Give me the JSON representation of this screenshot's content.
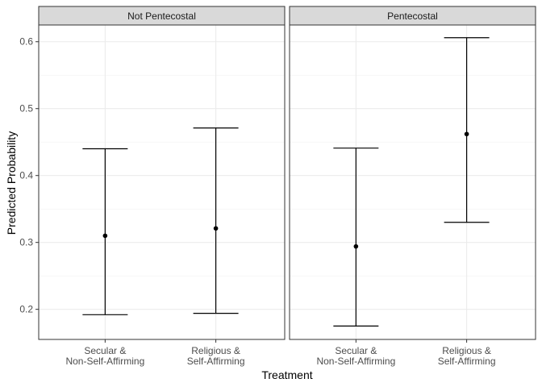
{
  "chart_data": {
    "type": "errorbar",
    "xlabel": "Treatment",
    "ylabel": "Predicted Probability",
    "ylim": [
      0.155,
      0.625
    ],
    "yticks": [
      0.2,
      0.3,
      0.4,
      0.5,
      0.6
    ],
    "ytick_labels": [
      "0.2",
      "0.3",
      "0.4",
      "0.5",
      "0.6"
    ],
    "grid": true,
    "categories": [
      [
        "Secular &",
        "Non-Self-Affirming"
      ],
      [
        "Religious &",
        "Self-Affirming"
      ]
    ],
    "panels": [
      {
        "title": "Not Pentecostal",
        "points": [
          {
            "estimate": 0.31,
            "lower": 0.192,
            "upper": 0.44
          },
          {
            "estimate": 0.321,
            "lower": 0.194,
            "upper": 0.471
          }
        ]
      },
      {
        "title": "Pentecostal",
        "points": [
          {
            "estimate": 0.294,
            "lower": 0.175,
            "upper": 0.441
          },
          {
            "estimate": 0.462,
            "lower": 0.33,
            "upper": 0.606
          }
        ]
      }
    ]
  }
}
